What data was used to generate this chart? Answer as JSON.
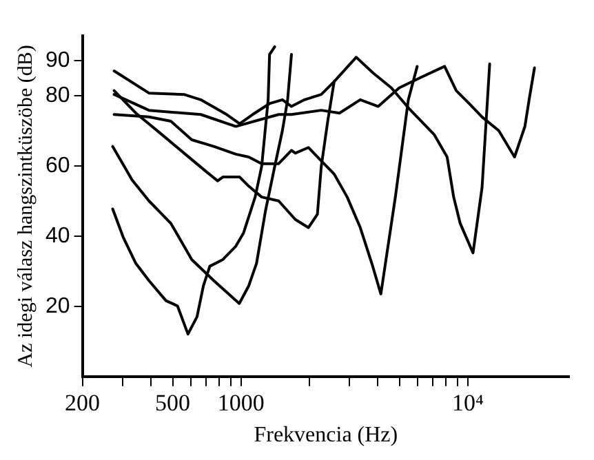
{
  "chart_data": {
    "type": "line",
    "xlabel": "Frekvencia (Hz)",
    "ylabel": "Az idegi válasz hangszintküszöbe (dB)",
    "log": "x",
    "grid": false,
    "legend": false,
    "marker": "none",
    "line_style": "solid",
    "xlim": [
      200,
      28000
    ],
    "xticks": [
      200,
      {
        "value": 300,
        "label": null
      },
      {
        "value": 400,
        "label": null
      },
      500,
      {
        "value": 600,
        "label": null
      },
      {
        "value": 700,
        "label": null
      },
      {
        "value": 800,
        "label": null
      },
      {
        "value": 900,
        "label": null
      },
      1000,
      {
        "value": 2000,
        "label": null
      },
      {
        "value": 3000,
        "label": null
      },
      {
        "value": 4000,
        "label": null
      },
      {
        "value": 5000,
        "label": null
      },
      {
        "value": 6000,
        "label": null
      },
      {
        "value": 7000,
        "label": null
      },
      {
        "value": 8000,
        "label": null
      },
      {
        "value": 9000,
        "label": null
      },
      {
        "value": 10000,
        "label": "10⁴"
      }
    ],
    "ylim": [
      0,
      97
    ],
    "yticks": [
      20,
      40,
      60,
      80,
      90
    ],
    "series": [
      {
        "color": "#000000",
        "x": [
          272,
          302,
          344,
          393,
          467,
          525,
          584,
          640,
          683,
          729,
          832,
          949,
          1027,
          1155,
          1234,
          1318,
          1337,
          1409
        ],
        "values": [
          47.7,
          39.8,
          32.2,
          27.3,
          21.6,
          20.1,
          12.1,
          17,
          25.8,
          31.4,
          33.3,
          37.1,
          40.9,
          51.1,
          59.8,
          78.8,
          91.7,
          93.9
        ]
      },
      {
        "color": "#000000",
        "x": [
          272,
          331,
          393,
          491,
          607,
          759,
          983,
          1082,
          1171,
          1284,
          1409,
          1523,
          1606,
          1670
        ],
        "values": [
          65.5,
          56,
          50,
          43.6,
          33.3,
          27.3,
          20.8,
          25.8,
          32.2,
          47.3,
          59.8,
          70,
          78.8,
          91.7
        ]
      },
      {
        "color": "#000000",
        "x": [
          276,
          344,
          448,
          561,
          692,
          789,
          832,
          987,
          1082,
          1234,
          1466,
          1737,
          1983,
          2173,
          2260,
          2413,
          2578
        ],
        "values": [
          81.4,
          75,
          68.9,
          63.6,
          58.7,
          55.7,
          56.8,
          56.8,
          54.2,
          51.1,
          50,
          44.7,
          42.4,
          46.2,
          59.8,
          72.7,
          84.1
        ]
      },
      {
        "color": "#000000",
        "x": [
          276,
          393,
          561,
          665,
          865,
          987,
          1126,
          1336,
          1523,
          1670,
          1906,
          2260,
          2578,
          3223,
          3826,
          4601,
          5471,
          7106,
          8110,
          8666,
          9260,
          10546,
          11560,
          12490
        ],
        "values": [
          87,
          80.7,
          80.3,
          78.8,
          74.6,
          72,
          74.6,
          77.7,
          78.8,
          76.9,
          78.8,
          80.3,
          84,
          90.9,
          86.4,
          82.2,
          76.5,
          68.9,
          62.5,
          51.1,
          43.6,
          35.2,
          53.8,
          89
        ]
      },
      {
        "color": "#000000",
        "x": [
          276,
          393,
          491,
          607,
          759,
          949,
          1082,
          1234,
          1466,
          1670,
          1737,
          1983,
          2260,
          2578,
          2940,
          3358,
          3776,
          4138,
          4795,
          5471,
          5984
        ],
        "values": [
          74.6,
          73.9,
          72.7,
          67.4,
          65.5,
          63.3,
          62.5,
          60.6,
          60.6,
          64.4,
          63.6,
          65.2,
          61.4,
          57.6,
          51.1,
          42.4,
          32.2,
          23.5,
          51.1,
          78.8,
          88.3
        ]
      },
      {
        "color": "#000000",
        "x": [
          276,
          393,
          665,
          949,
          1466,
          1670,
          2260,
          2718,
          3358,
          4031,
          4989,
          6226,
          7903,
          8895,
          10145,
          11560,
          13700,
          16080,
          17860,
          18640,
          19690
        ],
        "values": [
          80.3,
          75.8,
          74.6,
          71.2,
          74.6,
          74.6,
          75.8,
          75,
          78.8,
          76.9,
          82.2,
          85.2,
          88.3,
          81.4,
          77.7,
          73.9,
          70,
          62.5,
          71.2,
          78.8,
          87.9
        ]
      }
    ]
  }
}
